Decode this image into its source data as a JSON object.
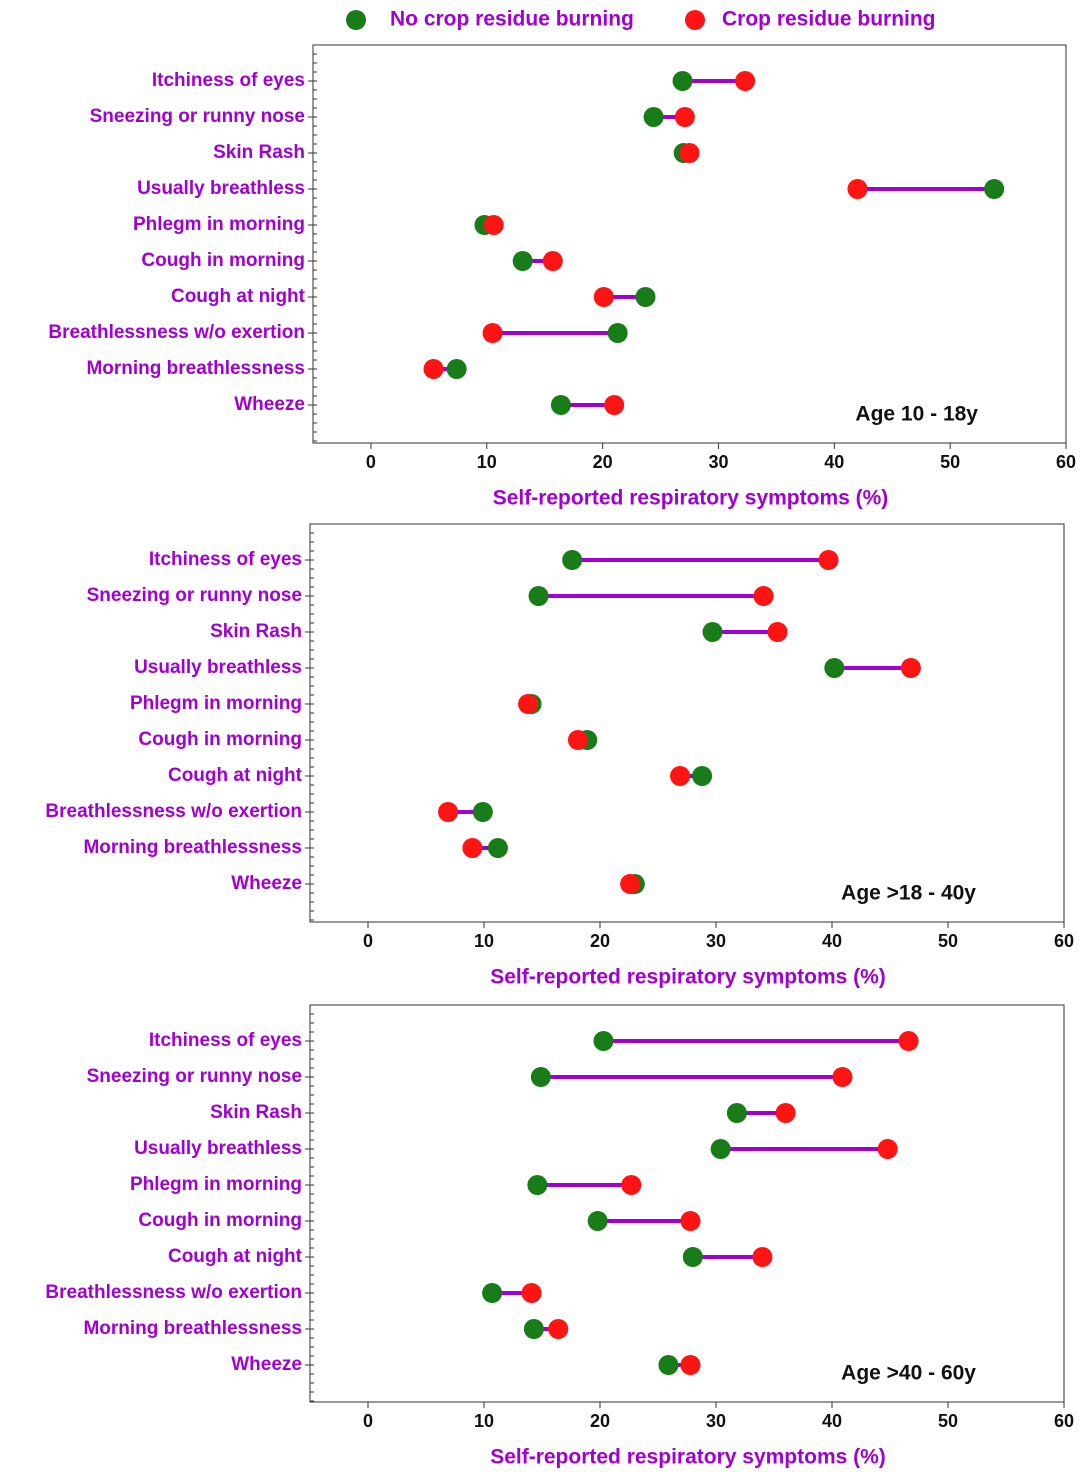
{
  "chart_data": [
    {
      "type": "dumbbell",
      "connector_color": "#a100d2",
      "categories": [
        "Itchiness of eyes",
        "Sneezing or runny nose",
        "Skin Rash",
        "Usually breathless",
        "Phlegm in morning",
        "Cough in morning",
        "Cough at night",
        "Breathlessness w/o exertion",
        "Morning breathlessness",
        "Wheeze"
      ],
      "series": [
        {
          "name": "No crop residue burning",
          "color": "#187c18",
          "values": [
            26.9,
            24.4,
            27.0,
            53.8,
            9.8,
            13.1,
            23.7,
            21.3,
            7.4,
            16.4
          ]
        },
        {
          "name": "Crop residue burning",
          "color": "#ff1414",
          "values": [
            32.3,
            27.1,
            27.5,
            42.0,
            10.6,
            15.7,
            20.1,
            10.5,
            5.4,
            21.0
          ]
        }
      ],
      "xlim": [
        -5,
        60
      ],
      "xticks": [
        0,
        10,
        20,
        30,
        40,
        50,
        60
      ],
      "xlabel": "Self-reported respiratory symptoms (%)",
      "annotation": "Age 10 - 18y"
    },
    {
      "type": "dumbbell",
      "connector_color": "#a100d2",
      "categories": [
        "Itchiness of eyes",
        "Sneezing or runny nose",
        "Skin Rash",
        "Usually breathless",
        "Phlegm in morning",
        "Cough in morning",
        "Cough at night",
        "Breathlessness w/o exertion",
        "Morning breathlessness",
        "Wheeze"
      ],
      "series": [
        {
          "name": "No crop residue burning",
          "color": "#187c18",
          "values": [
            17.6,
            14.7,
            29.7,
            40.2,
            14.1,
            18.9,
            28.8,
            9.9,
            11.2,
            23.0
          ]
        },
        {
          "name": "Crop residue burning",
          "color": "#ff1414",
          "values": [
            39.7,
            34.1,
            35.3,
            46.8,
            13.8,
            18.1,
            26.9,
            6.9,
            9.0,
            22.6
          ]
        }
      ],
      "xlim": [
        -5,
        60
      ],
      "xticks": [
        0,
        10,
        20,
        30,
        40,
        50,
        60
      ],
      "xlabel": "Self-reported respiratory symptoms (%)",
      "annotation": "Age >18 - 40y"
    },
    {
      "type": "dumbbell",
      "connector_color": "#a100d2",
      "categories": [
        "Itchiness of eyes",
        "Sneezing or runny nose",
        "Skin Rash",
        "Usually breathless",
        "Phlegm in morning",
        "Cough in morning",
        "Cough at night",
        "Breathlessness w/o exertion",
        "Morning breathlessness",
        "Wheeze"
      ],
      "series": [
        {
          "name": "No crop residue burning",
          "color": "#187c18",
          "values": [
            20.3,
            14.9,
            31.8,
            30.4,
            14.6,
            19.8,
            28.0,
            10.7,
            14.3,
            25.9
          ]
        },
        {
          "name": "Crop residue burning",
          "color": "#ff1414",
          "values": [
            46.6,
            40.9,
            36.0,
            44.8,
            22.7,
            27.8,
            34.0,
            14.1,
            16.4,
            27.8
          ]
        }
      ],
      "xlim": [
        -5,
        60
      ],
      "xticks": [
        0,
        10,
        20,
        30,
        40,
        50,
        60
      ],
      "xlabel": "Self-reported respiratory symptoms (%)",
      "annotation": "Age >40 - 60y"
    }
  ]
}
